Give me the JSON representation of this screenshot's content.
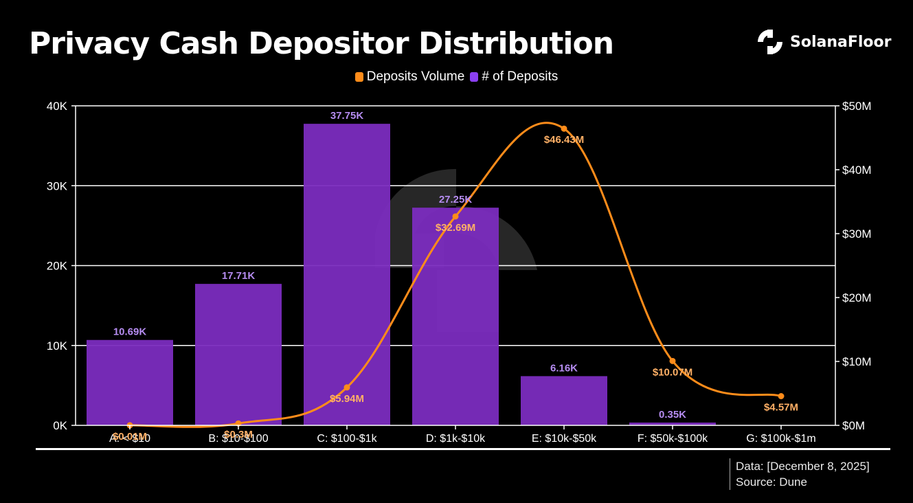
{
  "brand": {
    "name": "SolanaFloor",
    "logo_icon": "solanafloor-logo-icon"
  },
  "footer": {
    "data_line": "Data: [December 8, 2025]",
    "source_line": "Source: Dune"
  },
  "colors": {
    "bar": "#7b2cbf",
    "bar_label": "#b58cf0",
    "line": "#ff8c1a",
    "line_label": "#ffb066",
    "grid": "#ffffff"
  },
  "chart_data": {
    "type": "bar",
    "title": "Privacy Cash Depositor Distribution",
    "categories": [
      "A: < $10",
      "B: $10-$100",
      "C: $100-$1k",
      "D: $1k-$10k",
      "E: $10k-$50k",
      "F: $50k-$100k",
      "G: $100k-$1m"
    ],
    "series": [
      {
        "name": "# of Deposits",
        "type": "bar",
        "axis": "left",
        "values": [
          10690,
          17710,
          37750,
          27250,
          6160,
          350,
          0
        ],
        "labels": [
          "10.69K",
          "17.71K",
          "37.75K",
          "27.25K",
          "6.16K",
          "0.35K",
          ""
        ]
      },
      {
        "name": "Deposits Volume",
        "type": "line",
        "axis": "right",
        "values": [
          0.01,
          0.3,
          5.94,
          32.69,
          46.43,
          10.07,
          4.57
        ],
        "labels": [
          "$0.01M",
          "$0.3M",
          "$5.94M",
          "$32.69M",
          "$46.43M",
          "$10.07M",
          "$4.57M"
        ]
      }
    ],
    "legend": [
      "Deposits Volume",
      "# of Deposits"
    ],
    "y_left": {
      "range": [
        0,
        40000
      ],
      "ticks": [
        0,
        10000,
        20000,
        30000,
        40000
      ],
      "tick_labels": [
        "0K",
        "10K",
        "20K",
        "30K",
        "40K"
      ]
    },
    "y_right": {
      "range": [
        0,
        50
      ],
      "ticks": [
        0,
        10,
        20,
        30,
        40,
        50
      ],
      "tick_labels": [
        "$0M",
        "$10M",
        "$20M",
        "$30M",
        "$40M",
        "$50M"
      ]
    },
    "grid": true,
    "legend_position": "top-center"
  }
}
